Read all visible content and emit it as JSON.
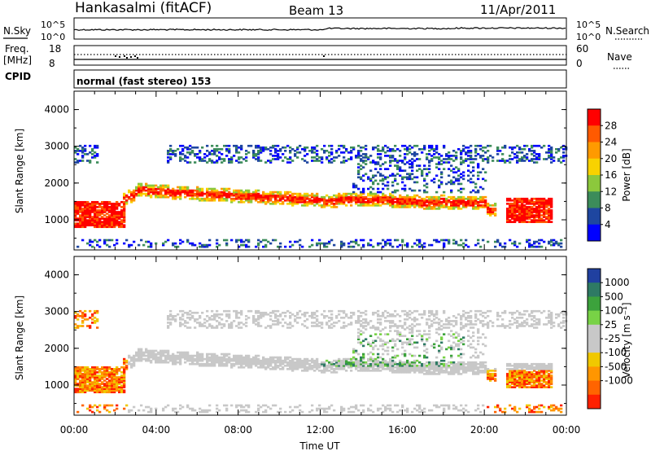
{
  "header": {
    "station": "Hankasalmi (fitACF)",
    "beam": "Beam 13",
    "date": "11/Apr/2011"
  },
  "top_panels": {
    "nsky_label": "N.Sky",
    "nsky_ticks": [
      "10^5",
      "10^0"
    ],
    "nsearch_label": "N.Search",
    "nsearch_ticks": [
      "10^5",
      "10^0"
    ],
    "freq_label": "Freq.",
    "freq_unit": "[MHz]",
    "freq_ticks": [
      "18",
      "8"
    ],
    "nave_label": "Nave",
    "nave_ticks": [
      "60",
      "0"
    ],
    "cpid_label": "CPID",
    "cpid_value": "normal (fast stereo) 153"
  },
  "chart_data": [
    {
      "type": "heatmap",
      "name": "power",
      "ylabel": "Slant Range [km]",
      "yticks": [
        "4000",
        "3000",
        "2000",
        "1000"
      ],
      "ylim": [
        180,
        4500
      ],
      "colorbar_label": "Power [dB]",
      "colorbar_ticks": [
        "28",
        "24",
        "20",
        "16",
        "12",
        "8",
        "4"
      ],
      "colors": [
        "#ff0000",
        "#ff5a00",
        "#ff9a00",
        "#f8d200",
        "#8cc83c",
        "#3c8c5a",
        "#1e46a0",
        "#0000ff"
      ]
    },
    {
      "type": "heatmap",
      "name": "velocity",
      "ylabel": "Slant Range [km]",
      "yticks": [
        "4000",
        "3000",
        "2000",
        "1000"
      ],
      "ylim": [
        180,
        4500
      ],
      "colorbar_label": "Velocity [m s⁻¹]",
      "colorbar_ticks": [
        "1000",
        "500",
        "100",
        "25",
        "-25",
        "-100",
        "-500",
        "-1000"
      ],
      "colors": [
        "#2040a0",
        "#2e7a64",
        "#3ca23c",
        "#78d246",
        "#c8c8c8",
        "#c8c8c8",
        "#f0c800",
        "#ff9600",
        "#ff6400",
        "#ff2000"
      ]
    }
  ],
  "xaxis": {
    "ticks": [
      "00:00",
      "04:00",
      "08:00",
      "12:00",
      "16:00",
      "20:00",
      "00:00"
    ],
    "label": "Time UT"
  }
}
